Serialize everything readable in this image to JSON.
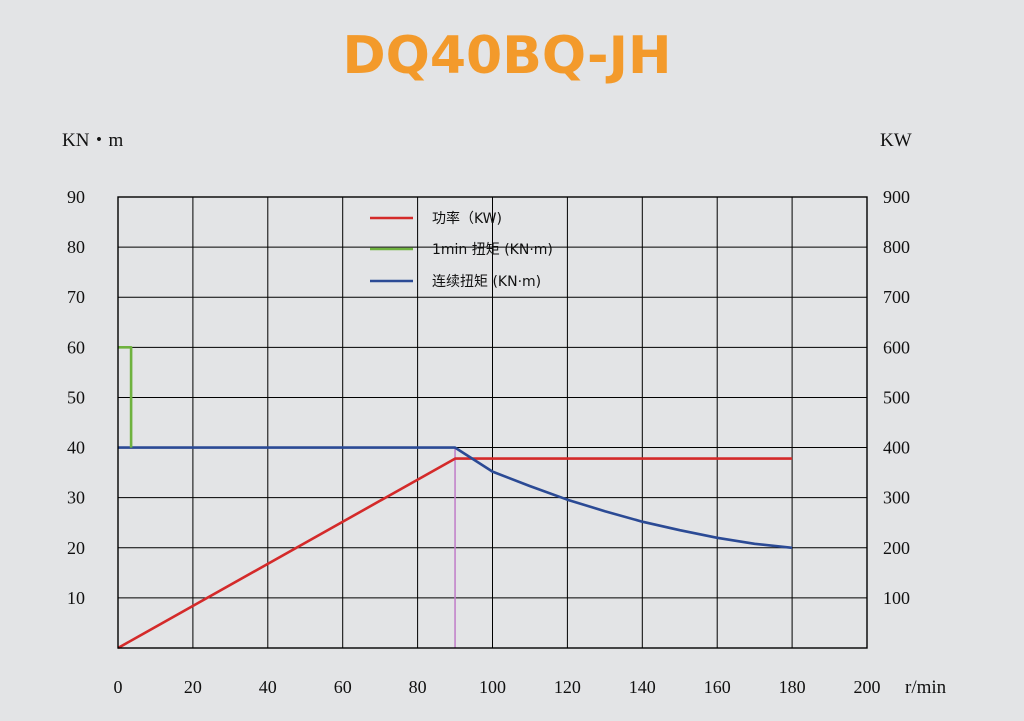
{
  "chart_data": {
    "type": "line",
    "title": "DQ40BQ-JH",
    "left_unit": "KN・m",
    "right_unit": "KW",
    "x_unit": "r/min",
    "xlim": [
      0,
      200
    ],
    "ylim_left": [
      0,
      90
    ],
    "ylim_right": [
      0,
      900
    ],
    "x_ticks": [
      "0",
      "20",
      "40",
      "60",
      "80",
      "100",
      "120",
      "140",
      "160",
      "180",
      "200"
    ],
    "y_left_ticks": [
      "10",
      "20",
      "30",
      "40",
      "50",
      "60",
      "70",
      "80",
      "90"
    ],
    "y_right_ticks": [
      "100",
      "200",
      "300",
      "400",
      "500",
      "600",
      "700",
      "800",
      "900"
    ],
    "grid": true,
    "legend_position": "top-center",
    "series": [
      {
        "name": "功率（KW)",
        "axis": "right",
        "color": "#d42a2a",
        "points": [
          [
            0,
            0
          ],
          [
            90,
            378
          ],
          [
            180,
            378
          ]
        ]
      },
      {
        "name": "1min 扭矩 (KN·m)",
        "axis": "left",
        "color": "#6fb23f",
        "points": [
          [
            0,
            60
          ],
          [
            3.5,
            60
          ],
          [
            3.5,
            40
          ]
        ]
      },
      {
        "name": "连续扭矩 (KN·m)",
        "axis": "left",
        "color": "#2b4a95",
        "points": [
          [
            0,
            40
          ],
          [
            90,
            40
          ],
          [
            100,
            35.2
          ],
          [
            110,
            32.3
          ],
          [
            120,
            29.6
          ],
          [
            130,
            27.3
          ],
          [
            140,
            25.2
          ],
          [
            150,
            23.5
          ],
          [
            160,
            22
          ],
          [
            170,
            20.8
          ],
          [
            180,
            20
          ]
        ]
      }
    ],
    "marker_line": {
      "x": 90,
      "color": "#c07cc8"
    }
  }
}
